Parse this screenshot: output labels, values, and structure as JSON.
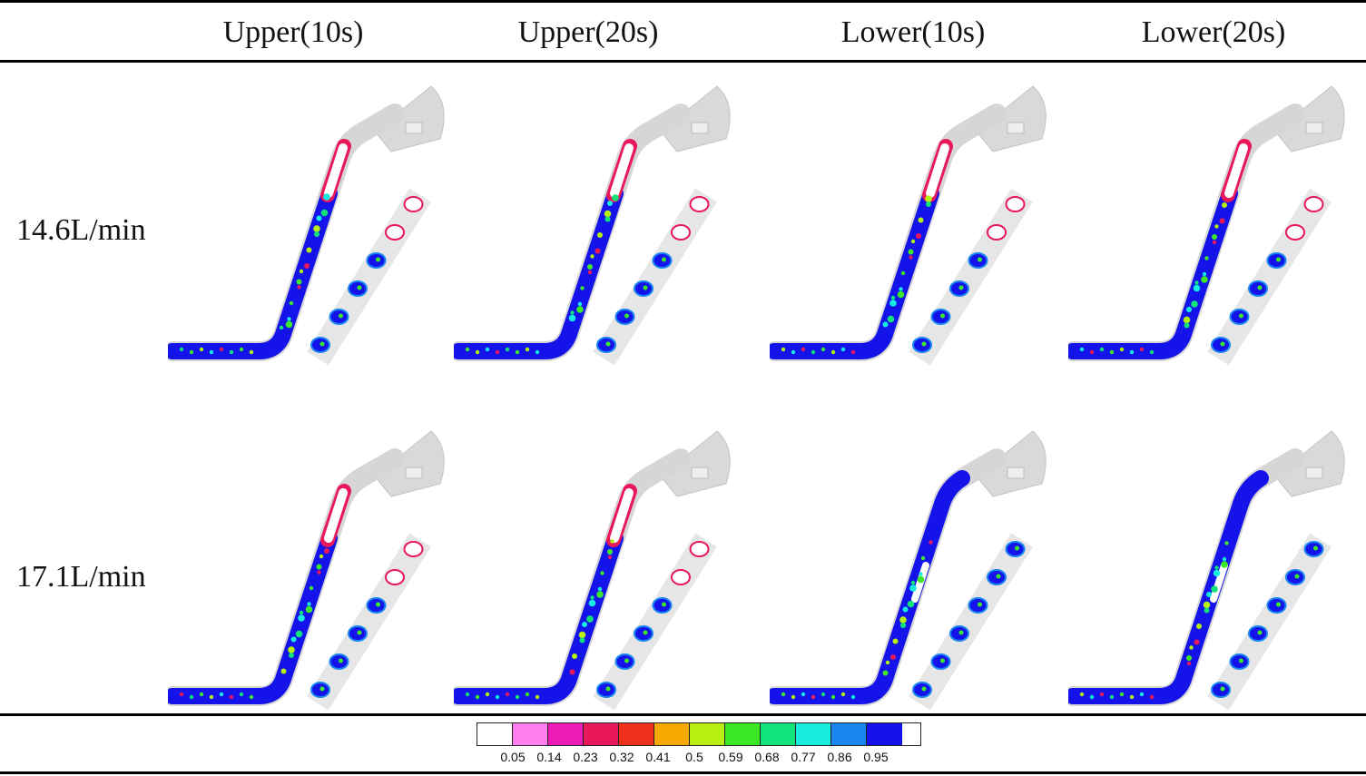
{
  "columns": [
    "Upper(10s)",
    "Upper(20s)",
    "Lower(10s)",
    "Lower(20s)"
  ],
  "rows": [
    "14.6L/min",
    "17.1L/min"
  ],
  "legend": {
    "colors": [
      "#ffffff",
      "#ff7ff0",
      "#ee1ab8",
      "#e8185a",
      "#f0301c",
      "#f5a800",
      "#b6ef10",
      "#3ce828",
      "#12e27a",
      "#16ecdf",
      "#1a86f0",
      "#1414ea"
    ],
    "labels": [
      "0.05",
      "0.14",
      "0.23",
      "0.32",
      "0.41",
      "0.5",
      "0.59",
      "0.68",
      "0.77",
      "0.86",
      "0.95"
    ]
  }
}
